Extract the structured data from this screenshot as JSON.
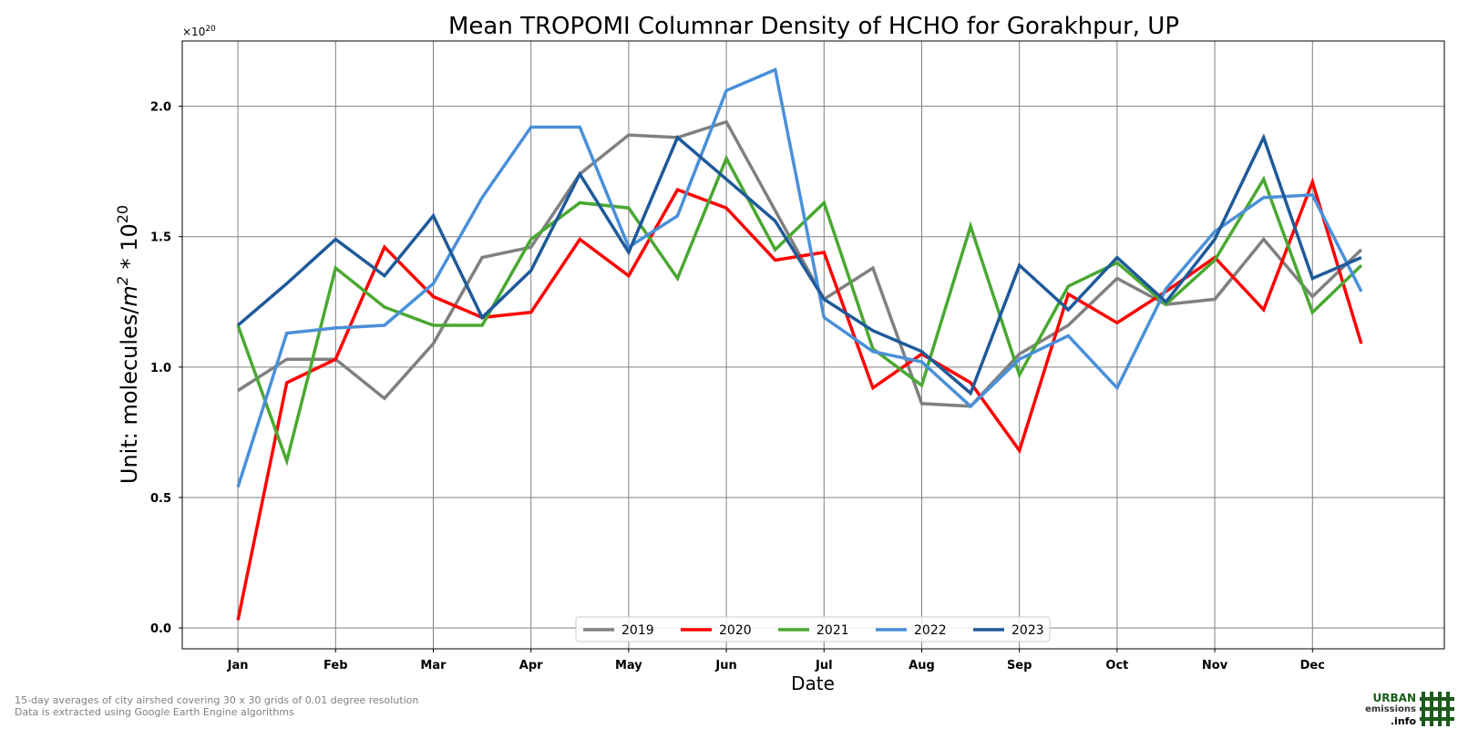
{
  "chart_data": {
    "type": "line",
    "title": "Mean TROPOMI Columnar Density of HCHO for Gorakhpur, UP",
    "xlabel": "Date",
    "ylabel_prefix": "Unit: molecules/",
    "ylabel_unit_base": "m",
    "ylabel_unit_exp": "2",
    "ylabel_mid": " * 10",
    "ylabel_exp": "20",
    "offset_base": "×10",
    "offset_exp": "20",
    "x_ticks": [
      "Jan",
      "Feb",
      "Mar",
      "Apr",
      "May",
      "Jun",
      "Jul",
      "Aug",
      "Sep",
      "Oct",
      "Nov",
      "Dec"
    ],
    "y_ticks": [
      "0.0",
      "0.5",
      "1.0",
      "1.5",
      "2.0"
    ],
    "ylim": [
      -0.08,
      2.25
    ],
    "xlim": [
      -0.57,
      12.35
    ],
    "grid": true,
    "legend_position": "bottom-center",
    "series": [
      {
        "name": "2019",
        "color": "#808080",
        "x": [
          0,
          0.5,
          1,
          1.5,
          2,
          2.5,
          3,
          3.5,
          4,
          4.5,
          5,
          5.5,
          6,
          6.5,
          7,
          7.5,
          8,
          8.5,
          9,
          9.5,
          10,
          10.5,
          11,
          11.5
        ],
        "values": [
          0.91,
          1.03,
          1.03,
          0.88,
          1.09,
          1.42,
          1.46,
          1.74,
          1.89,
          1.88,
          1.94,
          1.6,
          1.26,
          1.38,
          0.86,
          0.85,
          1.05,
          1.16,
          1.34,
          1.24,
          1.26,
          1.49,
          1.27,
          1.45
        ]
      },
      {
        "name": "2020",
        "color": "#ff0000",
        "x": [
          0,
          0.5,
          1,
          1.5,
          2,
          2.5,
          3,
          3.5,
          4,
          4.5,
          5,
          5.5,
          6,
          6.5,
          7,
          7.5,
          8,
          8.5,
          9,
          9.5,
          10,
          10.5,
          11,
          11.5
        ],
        "values": [
          0.03,
          0.94,
          1.03,
          1.46,
          1.27,
          1.19,
          1.21,
          1.49,
          1.35,
          1.68,
          1.61,
          1.41,
          1.44,
          0.92,
          1.05,
          0.94,
          0.68,
          1.28,
          1.17,
          1.29,
          1.42,
          1.22,
          1.71,
          1.09
        ]
      },
      {
        "name": "2021",
        "color": "#4aa832",
        "x": [
          0,
          0.5,
          1,
          1.5,
          2,
          2.5,
          3,
          3.5,
          4,
          4.5,
          5,
          5.5,
          6,
          6.5,
          7,
          7.5,
          8,
          8.5,
          9,
          9.5,
          10,
          10.5,
          11,
          11.5
        ],
        "values": [
          1.16,
          0.64,
          1.38,
          1.23,
          1.16,
          1.16,
          1.49,
          1.63,
          1.61,
          1.34,
          1.8,
          1.45,
          1.63,
          1.07,
          0.93,
          1.54,
          0.97,
          1.31,
          1.4,
          1.24,
          1.41,
          1.72,
          1.21,
          1.39
        ]
      },
      {
        "name": "2022",
        "color": "#4a90d9",
        "x": [
          0,
          0.5,
          1,
          1.5,
          2,
          2.5,
          3,
          3.5,
          4,
          4.5,
          5,
          5.5,
          6,
          6.5,
          7,
          7.5,
          8,
          8.5,
          9,
          9.5,
          10,
          10.5,
          11,
          11.5
        ],
        "values": [
          0.54,
          1.13,
          1.15,
          1.16,
          1.32,
          1.65,
          1.92,
          1.92,
          1.46,
          1.58,
          2.06,
          2.14,
          1.19,
          1.06,
          1.02,
          0.85,
          1.03,
          1.12,
          0.92,
          1.3,
          1.52,
          1.65,
          1.66,
          1.29
        ]
      },
      {
        "name": "2023",
        "color": "#1f5a99",
        "x": [
          0,
          0.5,
          1,
          1.5,
          2,
          2.5,
          3,
          3.5,
          4,
          4.5,
          5,
          5.5,
          6,
          6.5,
          7,
          7.5,
          8,
          8.5,
          9,
          9.5,
          10,
          10.5,
          11,
          11.5
        ],
        "values": [
          1.16,
          1.32,
          1.49,
          1.35,
          1.58,
          1.19,
          1.37,
          1.74,
          1.44,
          1.88,
          1.72,
          1.56,
          1.26,
          1.14,
          1.06,
          0.9,
          1.39,
          1.22,
          1.42,
          1.25,
          1.49,
          1.88,
          1.34,
          1.42
        ]
      }
    ]
  },
  "footnote": {
    "line1": "15-day averages of city airshed covering 30 x 30 grids of 0.01 degree resolution",
    "line2": "Data is extracted using Google Earth Engine algorithms"
  },
  "logo": {
    "line1": "URBAN",
    "line2": "emissions",
    "line3": ".info",
    "color": "#1a5c1a"
  }
}
